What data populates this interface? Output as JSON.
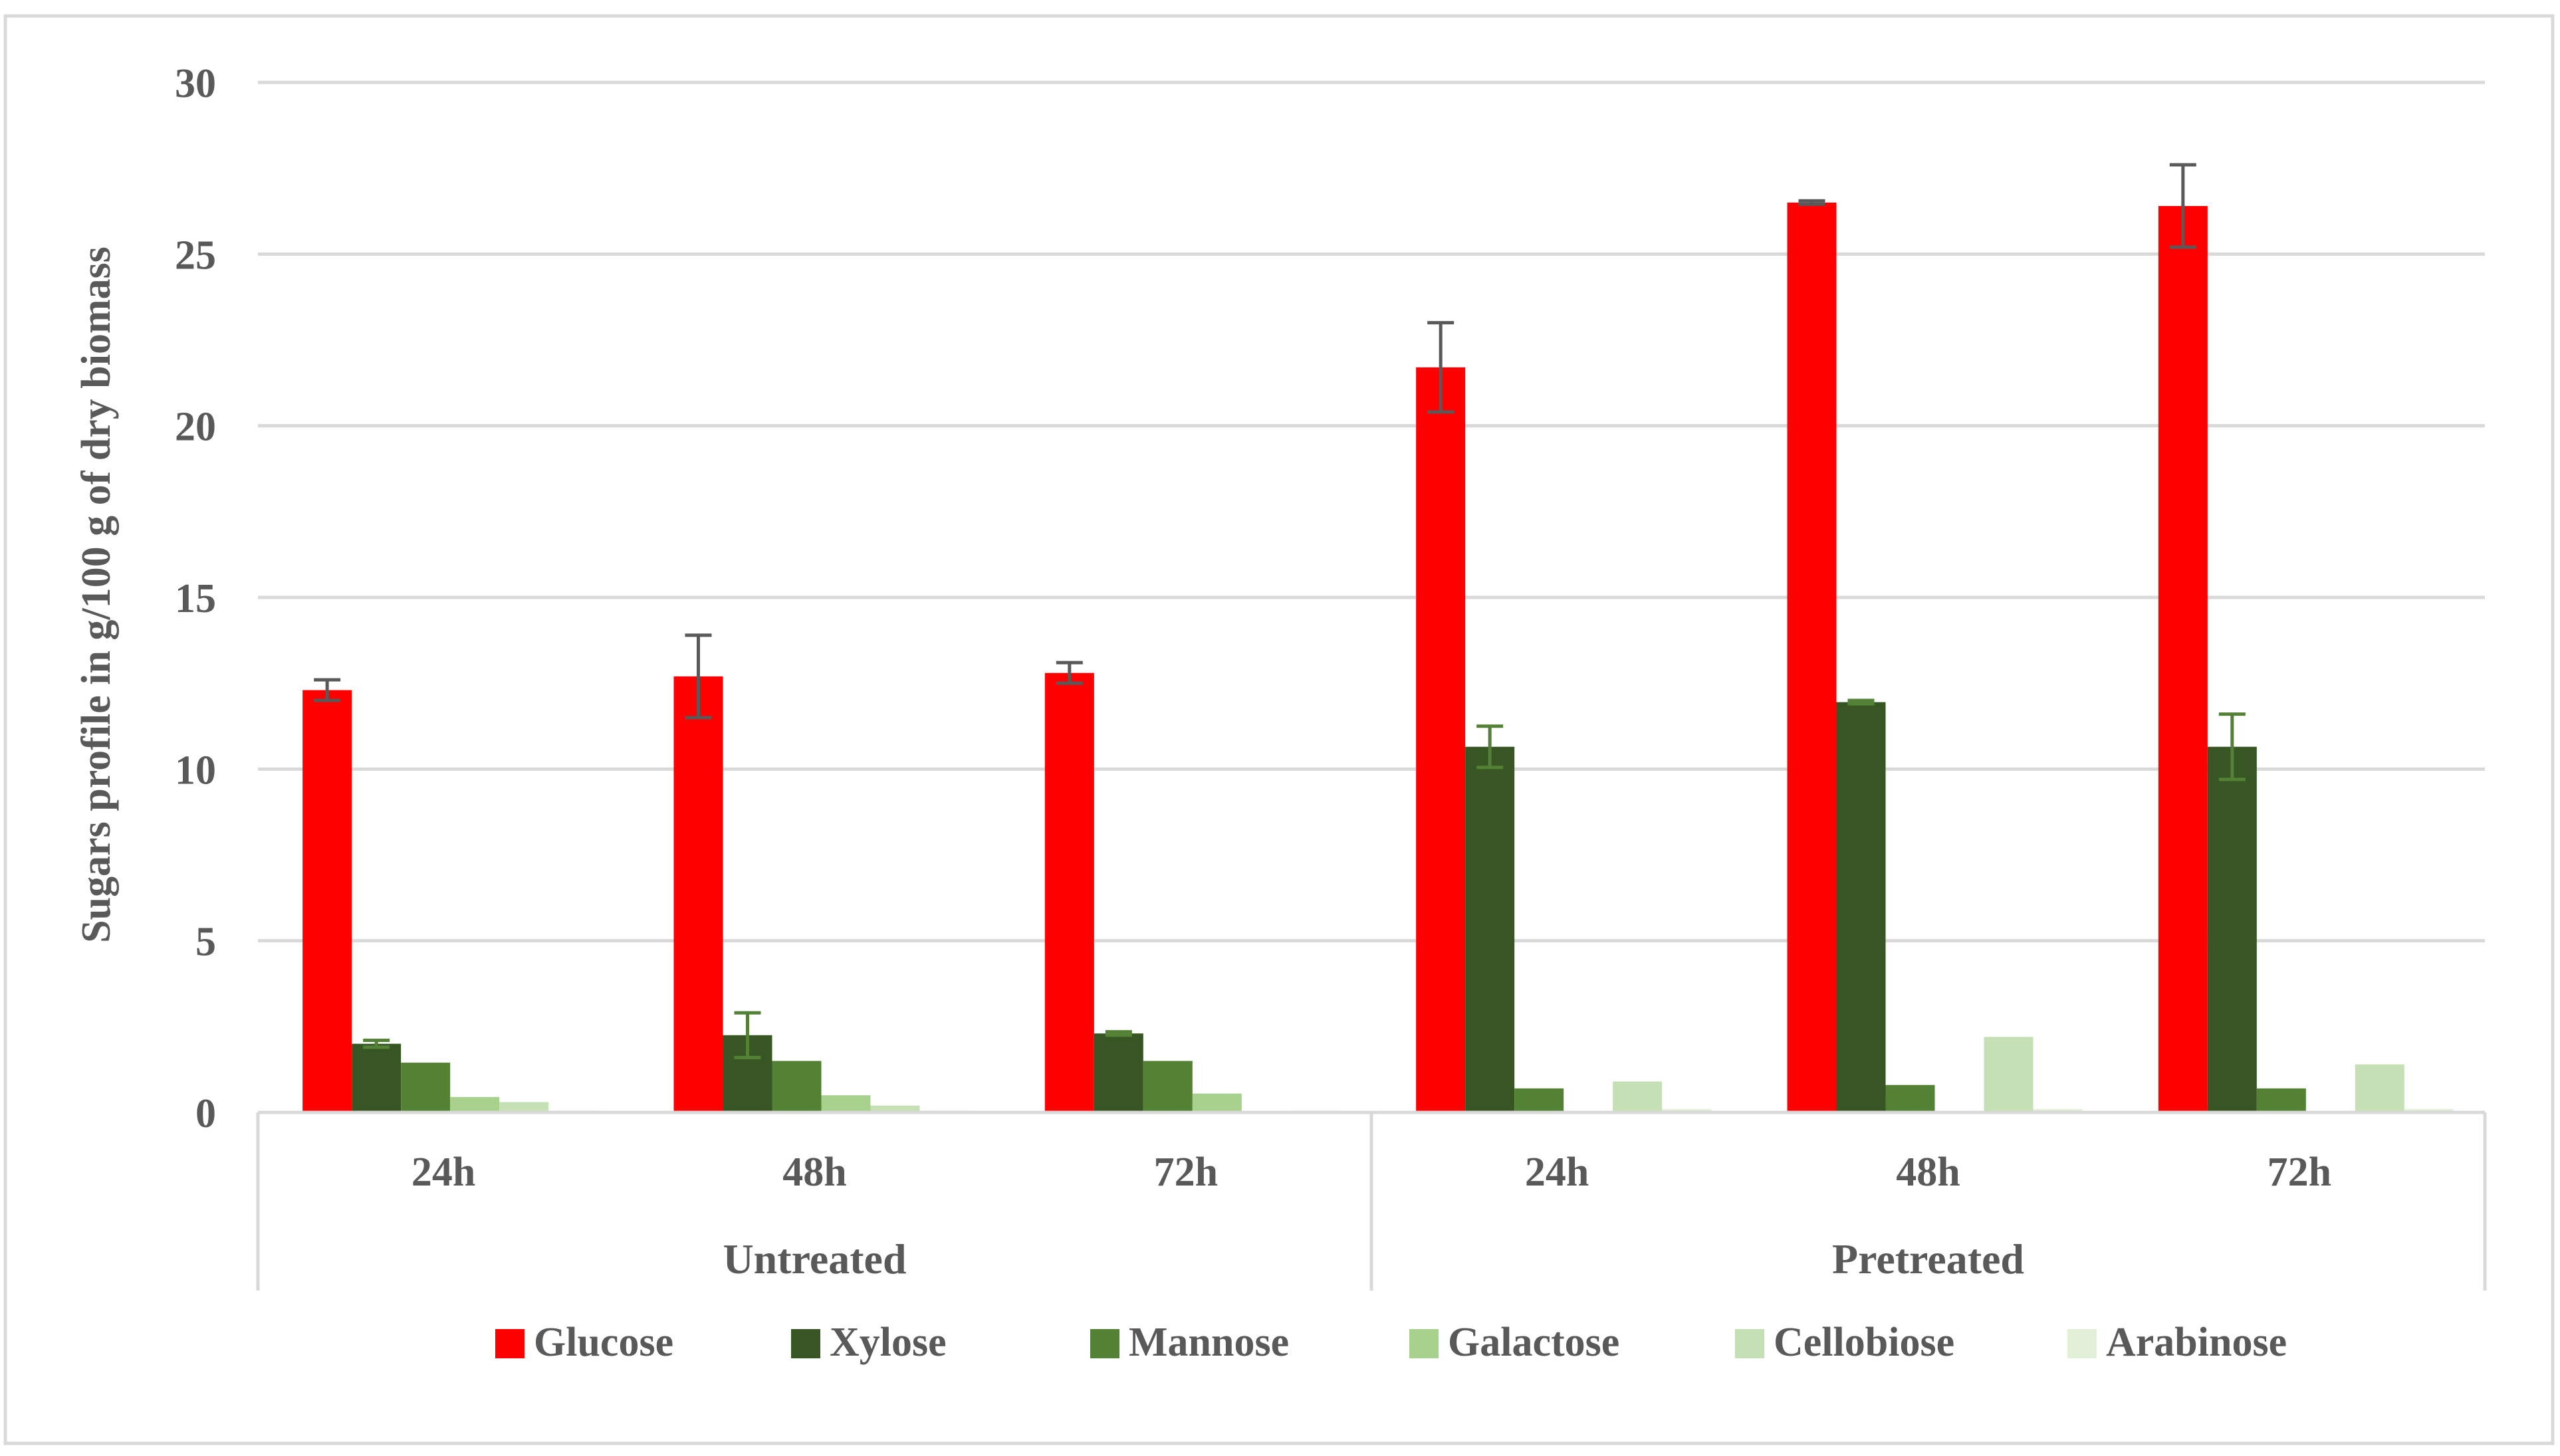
{
  "chart_data": {
    "type": "bar",
    "ylabel": "Sugars profile in g/100 g of dry biomass",
    "ylim": [
      0,
      30
    ],
    "y_ticks": [
      0,
      5,
      10,
      15,
      20,
      25,
      30
    ],
    "grid": true,
    "legend_position": "bottom",
    "groups": [
      {
        "label": "Untreated",
        "categories": [
          "24h",
          "48h",
          "72h"
        ]
      },
      {
        "label": "Pretreated",
        "categories": [
          "24h",
          "48h",
          "72h"
        ]
      }
    ],
    "series": [
      {
        "name": "Glucose",
        "color": "#ff0000",
        "values": [
          12.3,
          12.7,
          12.8,
          21.7,
          26.5,
          26.4
        ],
        "errors": [
          0.3,
          1.2,
          0.3,
          1.3,
          0.05,
          1.2
        ],
        "error_color": "#595959"
      },
      {
        "name": "Xylose",
        "color": "#375623",
        "values": [
          2.0,
          2.25,
          2.3,
          10.65,
          11.95,
          10.65
        ],
        "errors": [
          0.1,
          0.65,
          0.05,
          0.6,
          0.05,
          0.95
        ],
        "error_color": "#538135"
      },
      {
        "name": "Mannose",
        "color": "#548235",
        "values": [
          1.45,
          1.5,
          1.5,
          0.7,
          0.8,
          0.7
        ],
        "errors": [
          null,
          null,
          null,
          null,
          null,
          null
        ]
      },
      {
        "name": "Galactose",
        "color": "#a9d18e",
        "values": [
          0.45,
          0.5,
          0.55,
          0.0,
          0.0,
          0.0
        ],
        "errors": [
          null,
          null,
          null,
          null,
          null,
          null
        ]
      },
      {
        "name": "Cellobiose",
        "color": "#c5e0b4",
        "values": [
          0.3,
          0.2,
          0.0,
          0.9,
          2.2,
          1.4
        ],
        "errors": [
          null,
          null,
          null,
          null,
          null,
          null
        ]
      },
      {
        "name": "Arabinose",
        "color": "#e2f0d9",
        "values": [
          0.05,
          0.05,
          0.05,
          0.1,
          0.1,
          0.1
        ],
        "errors": [
          null,
          null,
          null,
          null,
          null,
          null
        ]
      }
    ]
  }
}
